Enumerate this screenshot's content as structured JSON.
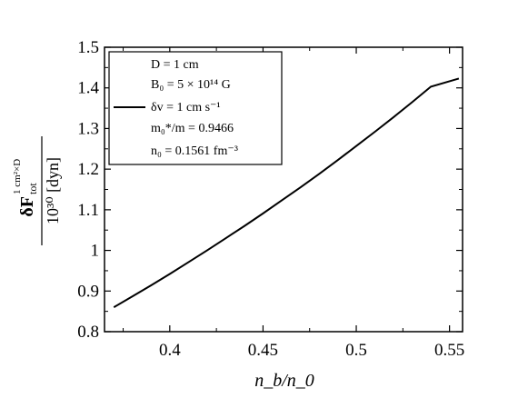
{
  "chart_data": {
    "type": "line",
    "title": "",
    "xlabel": "n_b/n_0",
    "ylabel": {
      "main": "δF",
      "superscript": "1 cm²×D",
      "subscript": "tot",
      "denominator": "10³⁰ [dyn]"
    },
    "xlim": [
      0.365,
      0.557
    ],
    "ylim": [
      0.8,
      1.5
    ],
    "x_ticks": [
      "0.4",
      "0.45",
      "0.5",
      "0.55"
    ],
    "y_ticks": [
      "0.8",
      "0.9",
      "1",
      "1.1",
      "1.2",
      "1.3",
      "1.4",
      "1.5"
    ],
    "grid": false,
    "legend": {
      "placement": "top-left",
      "lines": [
        "D = 1 cm",
        "B₀ = 5 × 10¹⁴ G",
        "δv = 1 cm s⁻¹",
        "m₀*/m = 0.9466",
        "n₀ = 0.1561 fm⁻³"
      ]
    },
    "series": [
      {
        "color": "#000000",
        "x": [
          0.37,
          0.38,
          0.39,
          0.4,
          0.41,
          0.42,
          0.43,
          0.44,
          0.45,
          0.46,
          0.47,
          0.48,
          0.49,
          0.5,
          0.51,
          0.52,
          0.53,
          0.54,
          0.555
        ],
        "y": [
          0.86,
          0.887,
          0.914,
          0.942,
          0.971,
          1.0,
          1.03,
          1.06,
          1.091,
          1.123,
          1.155,
          1.188,
          1.222,
          1.257,
          1.292,
          1.328,
          1.365,
          1.403,
          1.423
        ]
      }
    ]
  }
}
